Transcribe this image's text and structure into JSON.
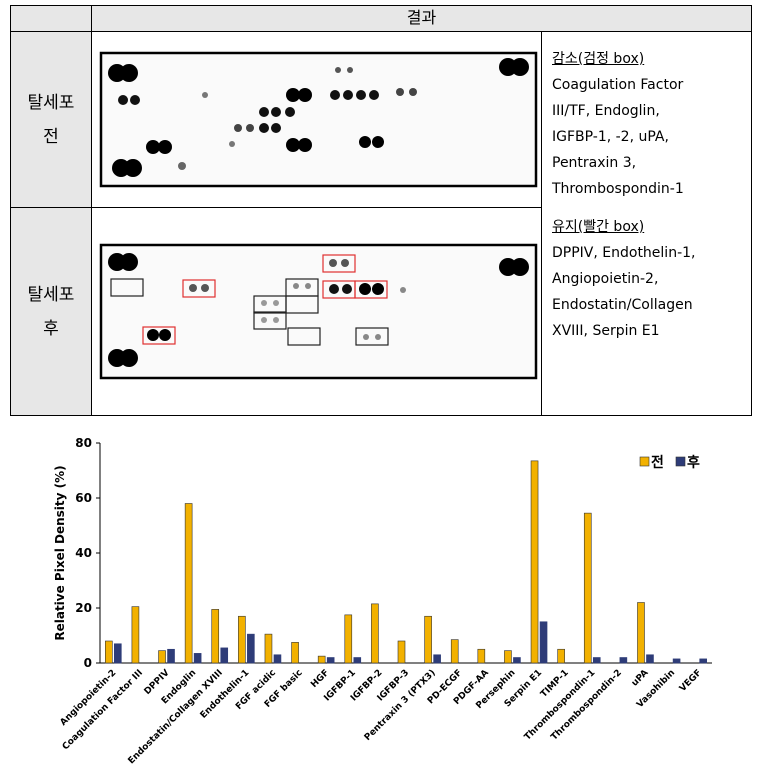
{
  "table": {
    "header": "결과",
    "rows": [
      {
        "label": [
          "탈세포",
          "전"
        ]
      },
      {
        "label": [
          "탈세포",
          "후"
        ]
      }
    ],
    "notes": [
      {
        "title": "감소(검정 box)",
        "lines": [
          "Coagulation Factor",
          "III/TF, Endoglin,",
          "IGFBP-1, -2, uPA,",
          "Pentraxin 3,",
          "Thrombospondin-1"
        ]
      },
      {
        "title": "유지(빨간 box)",
        "lines": [
          "DPPIV, Endothelin-1,",
          "Angiopoietin-2,",
          "Endostatin/Collagen",
          "XVIII, Serpin E1"
        ]
      }
    ]
  },
  "chart_data": {
    "type": "bar",
    "y_label": "Relative Pixel Density (%)",
    "categories": [
      "Angiopoietin-2",
      "Coagulation Factor III",
      "DPPIV",
      "Endoglin",
      "Endostatin/Collagen XVIII",
      "Endothelin-1",
      "FGF acidic",
      "FGF basic",
      "HGF",
      "IGFBP-1",
      "IGFBP-2",
      "IGFBP-3",
      "Pentraxin 3 (PTX3)",
      "PD-ECGF",
      "PDGF-AA",
      "Persephin",
      "Serpin E1",
      "TIMP-1",
      "Thrombospondin-1",
      "Thrombospondin-2",
      "uPA",
      "Vasohibin",
      "VEGF"
    ],
    "series": [
      {
        "name": "전",
        "color": "#f2b100",
        "values": [
          8,
          20.5,
          4.5,
          58,
          19.5,
          17,
          10.5,
          7.5,
          2.5,
          17.5,
          21.5,
          8,
          17,
          8.5,
          5,
          4.5,
          73.5,
          5,
          54.5,
          0,
          22,
          0,
          0
        ]
      },
      {
        "name": "후",
        "color": "#2e3c78",
        "values": [
          7,
          0,
          5,
          3.5,
          5.5,
          10.5,
          3,
          0,
          2,
          2,
          0,
          0,
          3,
          0,
          0,
          2,
          15,
          0,
          2,
          2,
          3,
          1.5,
          1.5
        ]
      }
    ],
    "ylim": [
      0,
      80
    ],
    "yticks": [
      0,
      20,
      40,
      60,
      80
    ],
    "legend": "top-right"
  }
}
